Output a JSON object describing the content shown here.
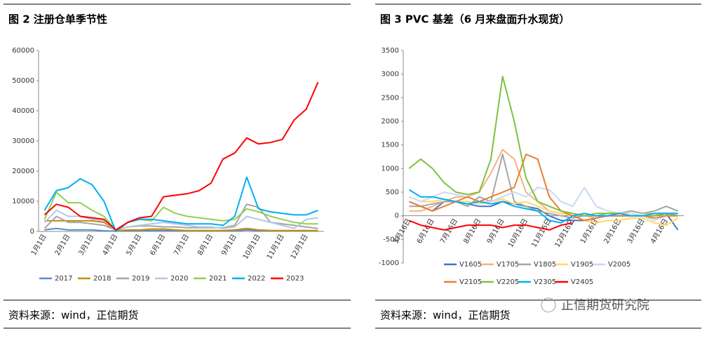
{
  "brand": "正信期货研究院",
  "chart_data": [
    {
      "type": "line",
      "title": "图 2  注册仓单季节性",
      "source": "资料来源：wind，正信期货",
      "categories": [
        "1月1日",
        null,
        "2月1日",
        null,
        "3月1日",
        null,
        "4月1日",
        null,
        "5月1日",
        null,
        "6月1日",
        null,
        "7月1日",
        null,
        "8月1日",
        null,
        "9月1日",
        null,
        "10月1日",
        null,
        "11月1日",
        null,
        "12月1日",
        null
      ],
      "ylim": [
        0,
        60000
      ],
      "yticks": [
        0,
        10000,
        20000,
        30000,
        40000,
        50000,
        60000
      ],
      "series": [
        {
          "name": "2017",
          "color": "#5b8bd0",
          "values": [
            500,
            1000,
            500,
            500,
            500,
            200,
            100,
            200,
            200,
            300,
            300,
            200,
            200,
            200,
            200,
            200,
            200,
            500,
            300,
            200,
            200,
            200,
            200,
            200
          ]
        },
        {
          "name": "2018",
          "color": "#c09000",
          "values": [
            3500,
            3500,
            3500,
            3500,
            3500,
            3000,
            200,
            500,
            500,
            800,
            800,
            500,
            300,
            300,
            300,
            300,
            500,
            1000,
            500,
            300,
            300,
            300,
            300,
            300
          ]
        },
        {
          "name": "2019",
          "color": "#a5a5a5",
          "values": [
            1000,
            5000,
            3000,
            3000,
            2500,
            2000,
            500,
            1500,
            1800,
            1800,
            1500,
            1500,
            1200,
            1200,
            1200,
            1200,
            2000,
            9000,
            8000,
            3000,
            2500,
            2000,
            1500,
            1000
          ]
        },
        {
          "name": "2020",
          "color": "#b4c7e7",
          "values": [
            3000,
            7000,
            5000,
            5000,
            4000,
            3500,
            500,
            1500,
            2000,
            2500,
            3000,
            2500,
            2000,
            1500,
            1500,
            1000,
            1500,
            5000,
            4000,
            3000,
            2000,
            1000,
            4000,
            4500
          ]
        },
        {
          "name": "2021",
          "color": "#92d050",
          "values": [
            4000,
            13000,
            9500,
            9500,
            7000,
            5000,
            500,
            3000,
            4000,
            3500,
            8000,
            6000,
            5000,
            4500,
            4000,
            3500,
            4000,
            7500,
            6500,
            5000,
            4000,
            3000,
            2500,
            2500
          ]
        },
        {
          "name": "2022",
          "color": "#00b0f0",
          "values": [
            7000,
            13500,
            14500,
            17500,
            15500,
            10000,
            0,
            3000,
            4000,
            4000,
            3500,
            3000,
            2500,
            2500,
            2500,
            2000,
            5000,
            18000,
            7500,
            6500,
            6000,
            5500,
            5500,
            7000
          ]
        },
        {
          "name": "2023",
          "color": "#ff0000",
          "values": [
            5500,
            9000,
            8000,
            5000,
            4500,
            4000,
            500,
            3000,
            4500,
            5000,
            11500,
            12000,
            12500,
            13500,
            16000,
            24000,
            26000,
            31000,
            29000,
            29500,
            30500,
            37000,
            40500,
            49500
          ]
        }
      ]
    },
    {
      "type": "line",
      "title": "图 3  PVC 基差（6 月来盘面升水现货）",
      "source": "资料来源：wind，正信期货",
      "categories": [
        "5月16日",
        null,
        "6月16日",
        null,
        "7月16日",
        null,
        "8月16日",
        null,
        "9月16日",
        null,
        "10月16日",
        null,
        "11月16日",
        null,
        "12月16日",
        null,
        "1月16日",
        null,
        "2月16日",
        null,
        "3月16日",
        null,
        "4月16日",
        null
      ],
      "ylim": [
        -1000,
        3500
      ],
      "yticks": [
        -1000,
        -500,
        0,
        500,
        1000,
        1500,
        2000,
        2500,
        3000,
        3500
      ],
      "series": [
        {
          "name": "V1605",
          "color": "#4472c4",
          "values": [
            300,
            200,
            100,
            300,
            300,
            250,
            200,
            200,
            300,
            250,
            200,
            150,
            0,
            -100,
            -100,
            -100,
            -50,
            0,
            0,
            0,
            0,
            0,
            50,
            -300
          ]
        },
        {
          "name": "V1705",
          "color": "#f4b183",
          "values": [
            100,
            100,
            200,
            300,
            400,
            400,
            500,
            900,
            1400,
            1200,
            500,
            300,
            100,
            50,
            0,
            0,
            -50,
            0,
            50,
            100,
            50,
            50,
            0,
            0
          ]
        },
        {
          "name": "V1805",
          "color": "#a5a5a5",
          "values": [
            200,
            200,
            250,
            300,
            300,
            200,
            400,
            300,
            1300,
            300,
            200,
            100,
            50,
            0,
            -50,
            0,
            0,
            50,
            50,
            100,
            50,
            100,
            200,
            100
          ]
        },
        {
          "name": "V1905",
          "color": "#ffd966",
          "values": [
            400,
            300,
            300,
            350,
            300,
            300,
            250,
            300,
            350,
            250,
            300,
            200,
            100,
            50,
            0,
            -100,
            -150,
            -100,
            -100,
            -50,
            -50,
            -150,
            -200,
            -50
          ]
        },
        {
          "name": "V2005",
          "color": "#c9d9f0",
          "values": [
            400,
            300,
            400,
            500,
            450,
            400,
            300,
            300,
            400,
            500,
            400,
            600,
            550,
            300,
            200,
            600,
            200,
            100,
            50,
            50,
            0,
            -100,
            0,
            50
          ]
        },
        {
          "name": "V2105",
          "color": "#ed7d31",
          "values": [
            300,
            200,
            100,
            200,
            300,
            400,
            300,
            400,
            500,
            600,
            1300,
            1200,
            400,
            100,
            0,
            -100,
            -50,
            0,
            0,
            0,
            0,
            -50,
            0,
            0
          ]
        },
        {
          "name": "V2205",
          "color": "#7cc242",
          "values": [
            1000,
            1200,
            1000,
            700,
            500,
            450,
            500,
            1200,
            2950,
            2000,
            800,
            300,
            200,
            100,
            50,
            0,
            50,
            50,
            50,
            0,
            0,
            0,
            50,
            0
          ]
        },
        {
          "name": "V2305",
          "color": "#00b0f0",
          "values": [
            550,
            400,
            400,
            350,
            300,
            250,
            300,
            250,
            300,
            200,
            150,
            100,
            -100,
            -150,
            0,
            50,
            0,
            0,
            50,
            0,
            0,
            50,
            50,
            50
          ]
        },
        {
          "name": "V2405",
          "color": "#ff0000",
          "values": [
            -100,
            -200,
            -250,
            -300,
            -250,
            -200,
            -200,
            -200,
            -250,
            -200,
            -200,
            -250,
            -300,
            -200,
            -150,
            null,
            null,
            null,
            null,
            null,
            null,
            null,
            null,
            null
          ]
        }
      ]
    }
  ]
}
